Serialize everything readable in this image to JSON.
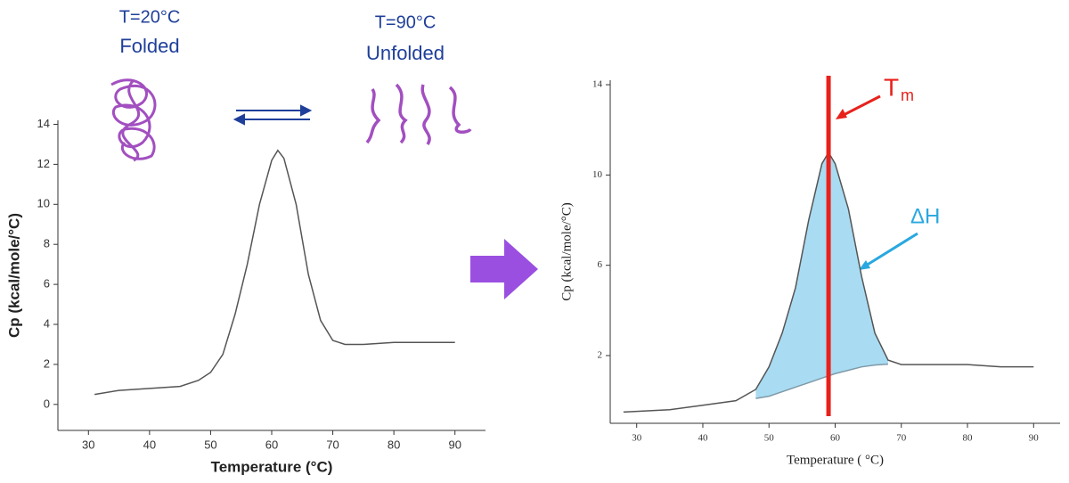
{
  "chart_data": [
    {
      "type": "line",
      "xlabel": "Temperature (°C)",
      "ylabel": "Cp (kcal/mole/°C)",
      "x": [
        31,
        35,
        40,
        45,
        48,
        50,
        52,
        54,
        56,
        58,
        60,
        61,
        62,
        64,
        66,
        68,
        70,
        72,
        75,
        80,
        85,
        90
      ],
      "series": [
        {
          "color": "#555555",
          "values": [
            0.5,
            0.7,
            0.8,
            0.9,
            1.2,
            1.6,
            2.5,
            4.5,
            7,
            10,
            12.2,
            12.7,
            12.3,
            10,
            6.5,
            4.2,
            3.2,
            3.0,
            3.0,
            3.1,
            3.1,
            3.1
          ]
        }
      ],
      "xlim": [
        25,
        95
      ],
      "xticks": [
        30,
        40,
        50,
        60,
        70,
        80,
        90
      ],
      "ylim": [
        -1.3,
        14.2
      ],
      "yticks": [
        0,
        2,
        4,
        6,
        8,
        10,
        12,
        14
      ]
    },
    {
      "type": "line",
      "xlabel": "Temperature ( °C)",
      "ylabel": "Cp (kcal/mole/°C)",
      "x": [
        28,
        35,
        40,
        45,
        48,
        50,
        52,
        54,
        56,
        58,
        59,
        60,
        62,
        64,
        66,
        68,
        70,
        75,
        80,
        85,
        90
      ],
      "series": [
        {
          "color": "#555555",
          "values": [
            -0.5,
            -0.4,
            -0.2,
            0,
            0.5,
            1.5,
            3,
            5,
            8,
            10.5,
            11,
            10.5,
            8.5,
            5.5,
            3,
            1.8,
            1.6,
            1.6,
            1.6,
            1.5,
            1.5
          ]
        },
        {
          "color": "#7f9aa8",
          "values": [
            null,
            null,
            null,
            null,
            0.1,
            0.2,
            0.4,
            0.6,
            0.8,
            1.0,
            1.1,
            1.2,
            1.35,
            1.5,
            1.58,
            1.62,
            null,
            null,
            null,
            null,
            null
          ]
        }
      ],
      "fill_color": "#a9dcf2",
      "vline": 59,
      "vline_color": "#e8211b",
      "xlim": [
        26,
        94
      ],
      "xticks": [
        30,
        40,
        50,
        60,
        70,
        80,
        90
      ],
      "ylim": [
        -1,
        14.2
      ],
      "yticks": [
        2,
        6,
        10,
        14
      ]
    }
  ],
  "annotations": {
    "folded_temp": "T=20°C",
    "folded": "Folded",
    "unfolded_temp": "T=90°C",
    "unfolded": "Unfolded",
    "tm": "T",
    "tm_sub": "m",
    "dh": "ΔH"
  }
}
